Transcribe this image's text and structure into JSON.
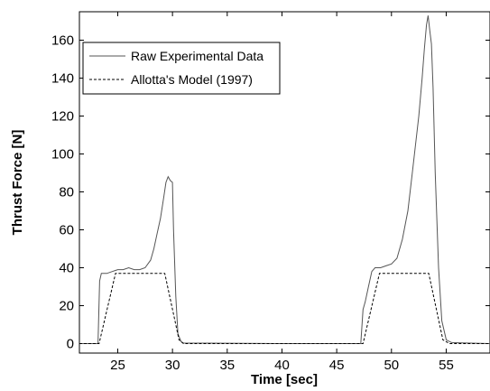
{
  "chart_data": {
    "type": "line",
    "title": "",
    "xlabel": "Time [sec]",
    "ylabel": "Thrust Force [N]",
    "xlim": [
      21.5,
      59
    ],
    "ylim": [
      -5,
      175
    ],
    "xticks": [
      25,
      30,
      35,
      40,
      45,
      50,
      55
    ],
    "yticks": [
      0,
      20,
      40,
      60,
      80,
      100,
      120,
      140,
      160
    ],
    "grid": false,
    "legend_position": "top-left",
    "series": [
      {
        "name": "Raw Experimental Data",
        "style": "solid",
        "color": "#555555",
        "x": [
          21.5,
          23.2,
          23.35,
          23.5,
          24.0,
          24.5,
          25.0,
          25.5,
          26.0,
          26.5,
          27.0,
          27.5,
          28.0,
          28.3,
          28.6,
          28.9,
          29.2,
          29.4,
          29.6,
          29.8,
          30.0,
          30.1,
          30.3,
          30.5,
          30.8,
          31.0,
          40.0,
          47.2,
          47.4,
          47.6,
          47.9,
          48.2,
          48.5,
          49.0,
          49.5,
          50.0,
          50.5,
          51.0,
          51.5,
          51.9,
          52.2,
          52.5,
          52.8,
          53.0,
          53.2,
          53.35,
          53.5,
          53.65,
          53.8,
          54.0,
          54.3,
          54.6,
          55.0,
          55.5,
          59.0
        ],
        "y": [
          0,
          0,
          33,
          37,
          37,
          38,
          39,
          39,
          40,
          39,
          39,
          40,
          44,
          50,
          58,
          66,
          77,
          85,
          88,
          86,
          85,
          60,
          25,
          5,
          1,
          0.3,
          0,
          0,
          18,
          22,
          30,
          38,
          40,
          40,
          41,
          42,
          45,
          55,
          70,
          90,
          105,
          120,
          140,
          155,
          168,
          173,
          165,
          158,
          135,
          90,
          40,
          12,
          2,
          0.5,
          0
        ]
      },
      {
        "name": "Allotta's Model (1997)",
        "style": "dashed",
        "color": "#000000",
        "x": [
          21.5,
          23.3,
          24.8,
          29.3,
          30.6,
          31.0,
          47.4,
          48.9,
          53.4,
          54.7,
          55.3,
          59.0
        ],
        "y": [
          0,
          0,
          37,
          37,
          2,
          0,
          0,
          37,
          37,
          2,
          0,
          0
        ]
      }
    ]
  }
}
